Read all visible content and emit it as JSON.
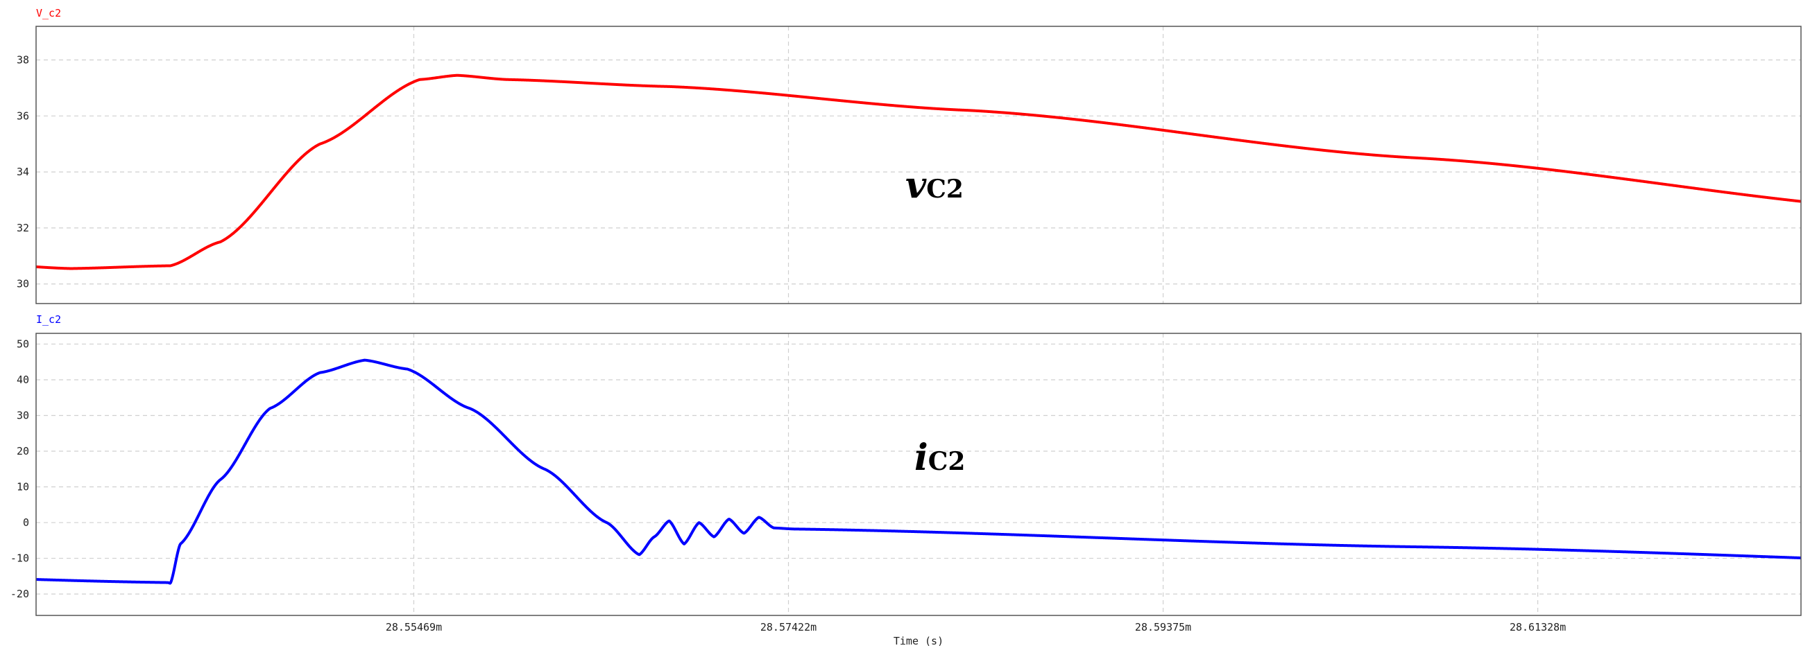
{
  "chart_data": [
    {
      "type": "line",
      "title": "V_c2",
      "annotation": {
        "main": "v",
        "sub": "C2"
      },
      "ylim": [
        29.3,
        39.2
      ],
      "yticks": [
        30,
        32,
        34,
        36,
        38
      ],
      "grid": true,
      "color": "#ff0000",
      "series": [
        {
          "name": "V_c2",
          "waveform": {
            "period_s": 0.00013,
            "x_start_s": 0.028535,
            "x_end_s": 0.028627,
            "points": [
              [
                0.0,
                30.65
              ],
              [
                0.02,
                31.5
              ],
              [
                0.06,
                35.0
              ],
              [
                0.1,
                37.3
              ],
              [
                0.115,
                37.45
              ],
              [
                0.135,
                37.3
              ],
              [
                0.2,
                37.05
              ],
              [
                0.32,
                36.2
              ],
              [
                0.5,
                34.5
              ],
              [
                0.7,
                32.6
              ],
              [
                0.85,
                31.3
              ],
              [
                0.92,
                30.75
              ],
              [
                0.96,
                30.55
              ],
              [
                1.0,
                30.65
              ]
            ]
          }
        }
      ]
    },
    {
      "type": "line",
      "title": "I_c2",
      "annotation": {
        "main": "i",
        "sub": "C2"
      },
      "ylim": [
        -26,
        53
      ],
      "yticks": [
        -20,
        -10,
        0,
        10,
        20,
        30,
        40,
        50
      ],
      "grid": true,
      "color": "#0000ff",
      "xlabel": "Time (s)",
      "xticks": [
        {
          "value": 0.02855469,
          "label": "28.55469m"
        },
        {
          "value": 0.02857422,
          "label": "28.57422m"
        },
        {
          "value": 0.02859375,
          "label": "28.59375m"
        },
        {
          "value": 0.02861328,
          "label": "28.61328m"
        }
      ],
      "series": [
        {
          "name": "I_c2",
          "waveform": {
            "period_s": 0.00013,
            "x_start_s": 0.028535,
            "x_end_s": 0.028627,
            "points": [
              [
                0.0,
                -17.0
              ],
              [
                0.004,
                -6.0
              ],
              [
                0.02,
                12.0
              ],
              [
                0.04,
                32.0
              ],
              [
                0.06,
                42.0
              ],
              [
                0.078,
                45.5
              ],
              [
                0.095,
                43.0
              ],
              [
                0.12,
                32.0
              ],
              [
                0.15,
                15.0
              ],
              [
                0.175,
                0.0
              ],
              [
                0.188,
                -9.0
              ],
              [
                0.194,
                -4.0
              ],
              [
                0.2,
                0.5
              ],
              [
                0.206,
                -6.0
              ],
              [
                0.212,
                0.0
              ],
              [
                0.218,
                -4.0
              ],
              [
                0.224,
                1.0
              ],
              [
                0.23,
                -3.0
              ],
              [
                0.236,
                1.5
              ],
              [
                0.242,
                -1.5
              ],
              [
                0.25,
                -1.8
              ],
              [
                0.5,
                -6.8
              ],
              [
                0.8,
                -12.8
              ],
              [
                0.999,
                -16.8
              ],
              [
                1.0,
                -17.0
              ]
            ]
          }
        }
      ]
    }
  ]
}
